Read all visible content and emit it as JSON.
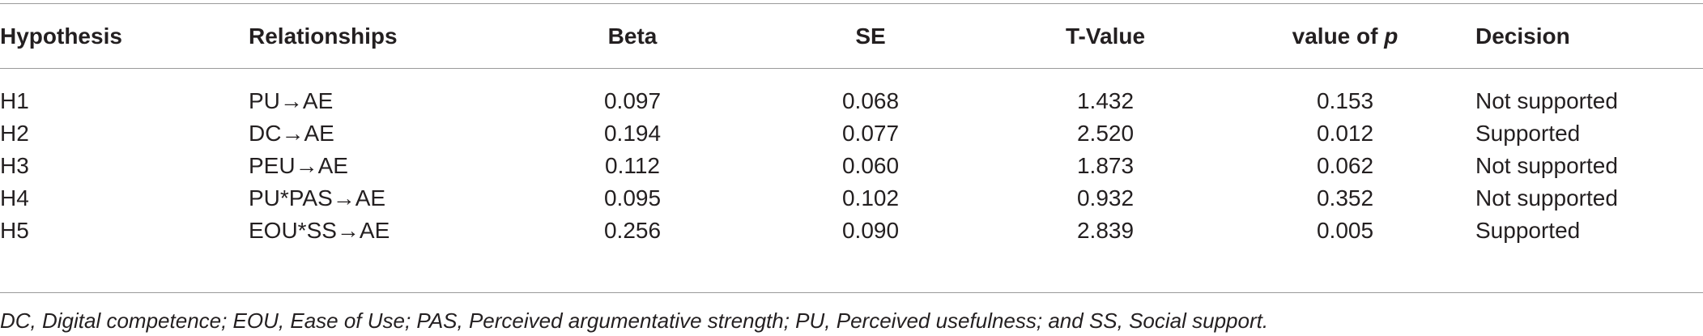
{
  "table": {
    "headers": {
      "hypothesis": "Hypothesis",
      "relationships": "Relationships",
      "beta": "Beta",
      "se": "SE",
      "t_value": "T-Value",
      "p_value_prefix": "value of ",
      "p_value_symbol": "p",
      "decision": "Decision"
    },
    "rows": [
      {
        "hypothesis": "H1",
        "relationship": "PU→AE",
        "beta": "0.097",
        "se": "0.068",
        "t_value": "1.432",
        "p_value": "0.153",
        "decision": "Not supported"
      },
      {
        "hypothesis": "H2",
        "relationship": "DC→AE",
        "beta": "0.194",
        "se": "0.077",
        "t_value": "2.520",
        "p_value": "0.012",
        "decision": "Supported"
      },
      {
        "hypothesis": "H3",
        "relationship": "PEU→AE",
        "beta": "0.112",
        "se": "0.060",
        "t_value": "1.873",
        "p_value": "0.062",
        "decision": "Not supported"
      },
      {
        "hypothesis": "H4",
        "relationship": "PU*PAS→AE",
        "beta": "0.095",
        "se": "0.102",
        "t_value": "0.932",
        "p_value": "0.352",
        "decision": "Not supported"
      },
      {
        "hypothesis": "H5",
        "relationship": "EOU*SS→AE",
        "beta": "0.256",
        "se": "0.090",
        "t_value": "2.839",
        "p_value": "0.005",
        "decision": "Supported"
      }
    ],
    "footnote": "DC, Digital competence; EOU, Ease of Use; PAS, Perceived argumentative strength; PU, Perceived usefulness; and SS, Social support."
  }
}
